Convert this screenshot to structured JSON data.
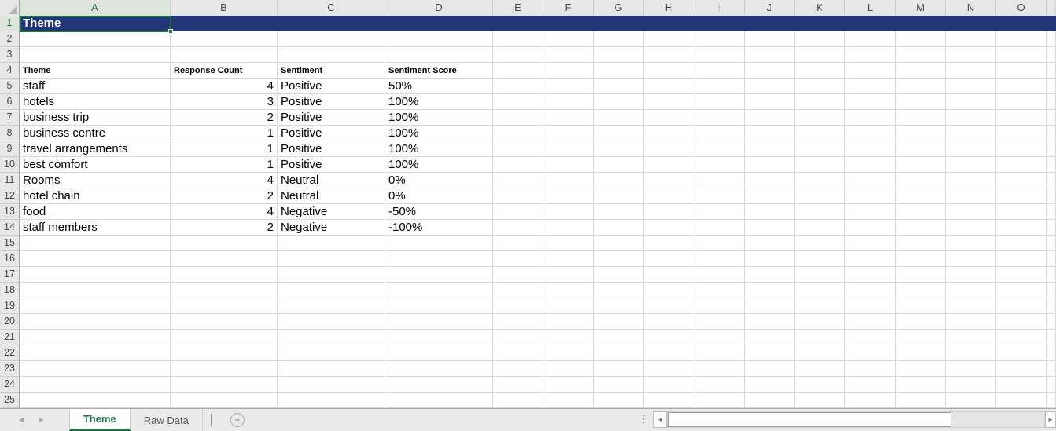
{
  "grid": {
    "column_letters": [
      "A",
      "B",
      "C",
      "D",
      "E",
      "F",
      "G",
      "H",
      "I",
      "J",
      "K",
      "L",
      "M",
      "N",
      "O"
    ],
    "visible_rows": 25,
    "selected_cell": "A1"
  },
  "cells": {
    "A1": "Theme"
  },
  "table": {
    "header_row_index": 4,
    "data_start_row_index": 5,
    "headers": [
      "Theme",
      "Response Count",
      "Sentiment",
      "Sentiment Score"
    ],
    "rows": [
      {
        "theme": "staff",
        "response_count": "4",
        "sentiment": "Positive",
        "sentiment_score": "50%"
      },
      {
        "theme": "hotels",
        "response_count": "3",
        "sentiment": "Positive",
        "sentiment_score": "100%"
      },
      {
        "theme": "business trip",
        "response_count": "2",
        "sentiment": "Positive",
        "sentiment_score": "100%"
      },
      {
        "theme": "business centre",
        "response_count": "1",
        "sentiment": "Positive",
        "sentiment_score": "100%"
      },
      {
        "theme": "travel arrangements",
        "response_count": "1",
        "sentiment": "Positive",
        "sentiment_score": "100%"
      },
      {
        "theme": "best comfort",
        "response_count": "1",
        "sentiment": "Positive",
        "sentiment_score": "100%"
      },
      {
        "theme": "Rooms",
        "response_count": "4",
        "sentiment": "Neutral",
        "sentiment_score": "0%"
      },
      {
        "theme": "hotel chain",
        "response_count": "2",
        "sentiment": "Neutral",
        "sentiment_score": "0%"
      },
      {
        "theme": "food",
        "response_count": "4",
        "sentiment": "Negative",
        "sentiment_score": "-50%"
      },
      {
        "theme": "staff members",
        "response_count": "2",
        "sentiment": "Negative",
        "sentiment_score": "-100%"
      }
    ]
  },
  "sheet_tabs": {
    "tabs": [
      {
        "label": "Theme",
        "active": true
      },
      {
        "label": "Raw Data",
        "active": false
      }
    ]
  },
  "icons": {
    "nav_left": "◄",
    "nav_right": "►",
    "scroll_left": "◄",
    "scroll_right": "►",
    "splitter_dots": "⋮",
    "add_sheet": "+"
  },
  "colors": {
    "accent_green": "#217346",
    "row1_fill": "#233778",
    "header_bg": "#E7E7E7",
    "gridline": "#D9D9D9"
  }
}
